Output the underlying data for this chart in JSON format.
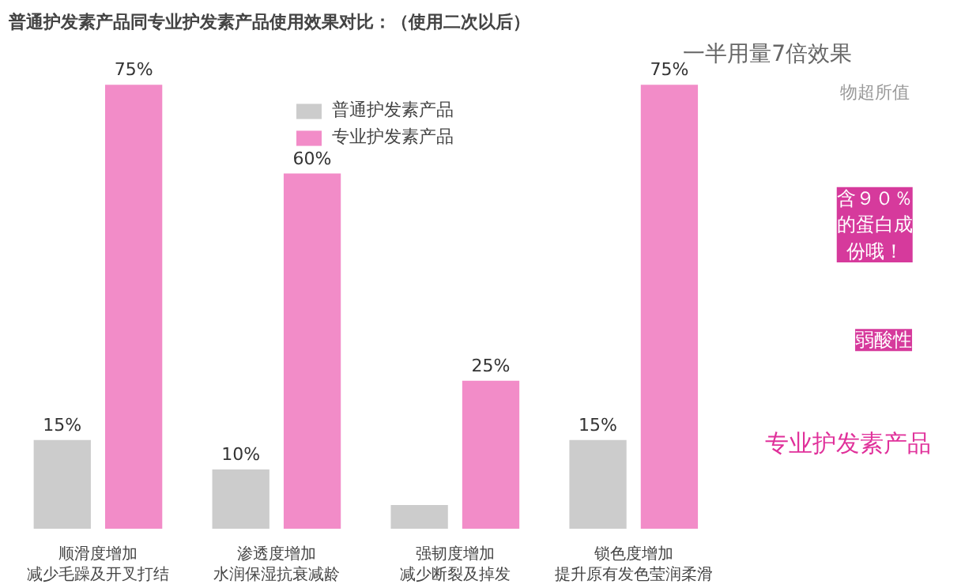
{
  "chart_data": {
    "type": "bar",
    "title": "普通护发素产品同专业护发素产品使用效果对比：（使用二次以后）",
    "categories": [
      "顺滑度增加减少毛躁及开叉打结",
      "渗透度增加水润保湿抗衰减龄",
      "强韧度增加减少断裂及掉发",
      "锁色度增加提升原有发色莹润柔滑"
    ],
    "series": [
      {
        "name": "普通护发素产品",
        "color": "#cccccc",
        "values": [
          15,
          10,
          4,
          15
        ],
        "value_labels": [
          "15%",
          "10%",
          null,
          "15%"
        ]
      },
      {
        "name": "专业护发素产品",
        "color": "#f28cc8",
        "values": [
          75,
          60,
          25,
          75
        ],
        "value_labels": [
          "75%",
          "60%",
          "25%",
          "75%"
        ]
      }
    ],
    "tick_labels": "x",
    "grid": false,
    "legend": "top",
    "annotations": [
      "一半用量7倍效果",
      "物超所值",
      "含９０％的蛋白成份哦！",
      "弱酸性",
      "专业护发素产品"
    ]
  }
}
